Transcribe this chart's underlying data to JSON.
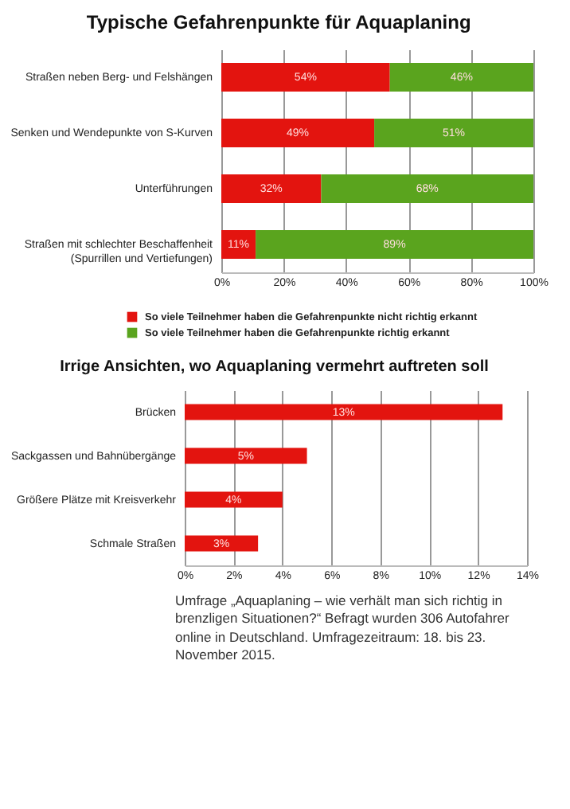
{
  "chart_data": [
    {
      "type": "bar",
      "orientation": "horizontal",
      "stacked": true,
      "title": "Typische Gefahrenpunkte für Aquaplaning",
      "categories": [
        "Straßen neben Berg- und Felshängen",
        "Senken und Wendepunkte von S-Kurven",
        "Unterführungen",
        "Straßen mit schlechter Beschaffenheit (Spurrillen und Vertiefungen)"
      ],
      "series": [
        {
          "name": "So viele Teilnehmer haben die Gefahrenpunkte nicht richtig erkannt",
          "color": "#e3140f",
          "values": [
            54,
            49,
            32,
            11
          ],
          "value_labels": [
            "54%",
            "49%",
            "32%",
            "11%"
          ]
        },
        {
          "name": "So viele Teilnehmer haben die Gefahrenpunkte richtig erkannt",
          "color": "#5aa41e",
          "values": [
            46,
            51,
            68,
            89
          ],
          "value_labels": [
            "46%",
            "51%",
            "68%",
            "89%"
          ]
        }
      ],
      "xlim": [
        0,
        100
      ],
      "xticks": [
        {
          "value": 0,
          "label": "0%"
        },
        {
          "value": 20,
          "label": "20%"
        },
        {
          "value": 40,
          "label": "40%"
        },
        {
          "value": 60,
          "label": "60%"
        },
        {
          "value": 80,
          "label": "80%"
        },
        {
          "value": 100,
          "label": "100%"
        }
      ],
      "grid": "x",
      "legend": "bottom"
    },
    {
      "type": "bar",
      "orientation": "horizontal",
      "title": "Irrige Ansichten, wo Aquaplaning vermehrt auftreten soll",
      "categories": [
        "Brücken",
        "Sackgassen und Bahnübergänge",
        "Größere Plätze mit Kreisverkehr",
        "Schmale Straßen"
      ],
      "values": [
        13,
        5,
        4,
        3
      ],
      "value_labels": [
        "13%",
        "5%",
        "4%",
        "3%"
      ],
      "color": "#e3140f",
      "xlim": [
        0,
        14
      ],
      "xticks": [
        {
          "value": 0,
          "label": "0%"
        },
        {
          "value": 2,
          "label": "2%"
        },
        {
          "value": 4,
          "label": "4%"
        },
        {
          "value": 6,
          "label": "6%"
        },
        {
          "value": 8,
          "label": "8%"
        },
        {
          "value": 10,
          "label": "10%"
        },
        {
          "value": 12,
          "label": "12%"
        },
        {
          "value": 14,
          "label": "14%"
        }
      ],
      "grid": "x",
      "legend": false,
      "annotations": [
        "Umfrage „Aquaplaning – wie verhält man sich richtig in brenzligen Situationen?“ Befragt wurden 306 Autofahrer online in Deutschland. Umfragezeitraum: 18. bis 23. November 2015."
      ]
    }
  ]
}
